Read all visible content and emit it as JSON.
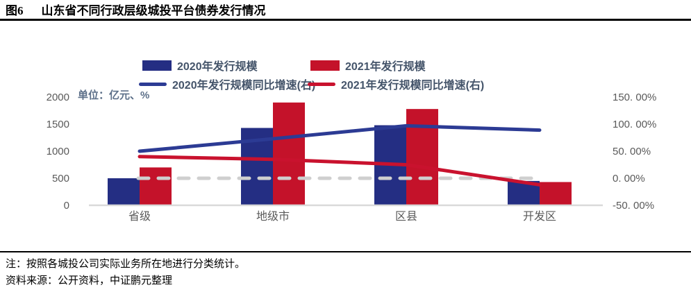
{
  "header": {
    "figure_label": "图6",
    "title": "山东省不同行政层级城投平台债券发行情况"
  },
  "unit_label": "单位：亿元、%",
  "legend": {
    "items": [
      {
        "label": "2020年发行规模"
      },
      {
        "label": "2021年发行规模"
      },
      {
        "label": "2020年发行规模同比增速(右)"
      },
      {
        "label": "2021年发行规模同比增速(右)"
      }
    ]
  },
  "chart_data": {
    "type": "bar",
    "subtype": "bar+line combo, dual axis",
    "title": "山东省不同行政层级城投平台债券发行情况",
    "categories": [
      "省级",
      "地级市",
      "区县",
      "开发区"
    ],
    "series": [
      {
        "name": "2020年发行规模",
        "type": "bar",
        "axis": "left",
        "color": "#242e83",
        "values": [
          500,
          1430,
          1480,
          450
        ]
      },
      {
        "name": "2021年发行规模",
        "type": "bar",
        "axis": "left",
        "color": "#c4122a",
        "values": [
          700,
          1900,
          1780,
          430
        ]
      },
      {
        "name": "2020年发行规模同比增速(右)",
        "type": "line",
        "axis": "right",
        "color": "#2c3b94",
        "values": [
          50,
          73,
          97,
          89
        ]
      },
      {
        "name": "2021年发行规模同比增速(右)",
        "type": "line",
        "axis": "right",
        "color": "#c9122e",
        "values": [
          40,
          35,
          25,
          -12
        ]
      }
    ],
    "left_axis": {
      "label": "亿元",
      "min": 0,
      "max": 2000,
      "tick_values": [
        0,
        500,
        1000,
        1500,
        2000
      ],
      "tick_labels": [
        "0",
        "500",
        "1000",
        "1500",
        "2000"
      ]
    },
    "right_axis": {
      "label": "%",
      "min": -50,
      "max": 150,
      "tick_values": [
        -50,
        0,
        50,
        100,
        150
      ],
      "tick_labels": [
        "-50. 00%",
        "0. 00%",
        "50. 00%",
        "100. 00%",
        "150. 00%"
      ]
    },
    "zero_line": {
      "style": "dashed",
      "color": "#cfcfcf",
      "at_right_value": 0
    },
    "baseline_color": "#d9d9d9",
    "grid": "off",
    "legend_position": "top"
  },
  "notes": {
    "note": "注：按照各城投公司实际业务所在地进行分类统计。",
    "source": "资料来源：公开资料，中证鹏元整理"
  }
}
